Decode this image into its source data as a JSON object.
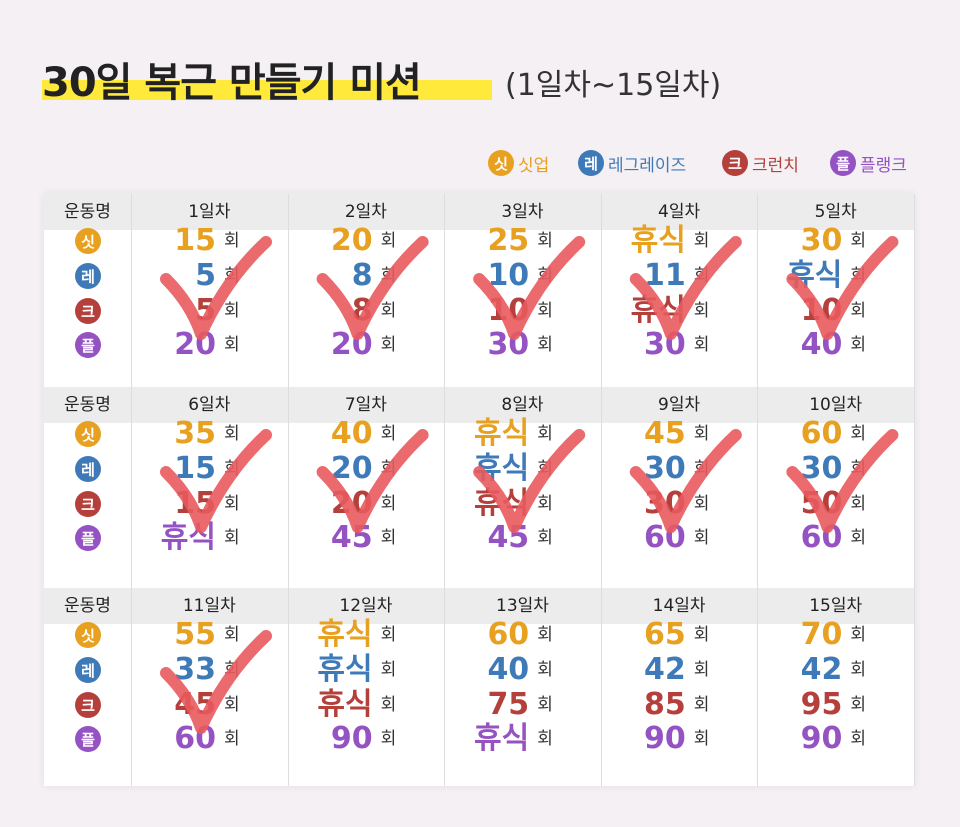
{
  "header": {
    "title": "30일 복근 만들기 미션",
    "subtitle": "(1일차~15일차)"
  },
  "legend": [
    {
      "icon": "싯",
      "label": "싯업",
      "color": "#e8a020"
    },
    {
      "icon": "레",
      "label": "레그레이즈",
      "color": "#3f7ab8"
    },
    {
      "icon": "크",
      "label": "크런치",
      "color": "#b5403b"
    },
    {
      "icon": "플",
      "label": "플랭크",
      "color": "#9452c2"
    }
  ],
  "table": {
    "name_header": "운동명",
    "unit": "회",
    "blocks": [
      {
        "days": [
          "1일차",
          "2일차",
          "3일차",
          "4일차",
          "5일차"
        ],
        "cells": [
          [
            "15",
            "5",
            "5",
            "20"
          ],
          [
            "20",
            "8",
            "8",
            "20"
          ],
          [
            "25",
            "10",
            "10",
            "30"
          ],
          [
            "휴식",
            "11",
            "휴식",
            "30"
          ],
          [
            "30",
            "휴식",
            "10",
            "40"
          ]
        ],
        "checked": [
          true,
          true,
          true,
          true,
          true
        ]
      },
      {
        "days": [
          "6일차",
          "7일차",
          "8일차",
          "9일차",
          "10일차"
        ],
        "cells": [
          [
            "35",
            "15",
            "15",
            "휴식"
          ],
          [
            "40",
            "20",
            "20",
            "45"
          ],
          [
            "휴식",
            "휴식",
            "휴식",
            "45"
          ],
          [
            "45",
            "30",
            "30",
            "60"
          ],
          [
            "60",
            "30",
            "50",
            "60"
          ]
        ],
        "checked": [
          true,
          true,
          true,
          true,
          true
        ]
      },
      {
        "days": [
          "11일차",
          "12일차",
          "13일차",
          "14일차",
          "15일차"
        ],
        "cells": [
          [
            "55",
            "33",
            "45",
            "60"
          ],
          [
            "휴식",
            "휴식",
            "휴식",
            "90"
          ],
          [
            "60",
            "40",
            "75",
            "휴식"
          ],
          [
            "65",
            "42",
            "85",
            "90"
          ],
          [
            "70",
            "42",
            "95",
            "90"
          ]
        ],
        "checked": [
          true,
          false,
          false,
          false,
          false
        ]
      }
    ]
  }
}
